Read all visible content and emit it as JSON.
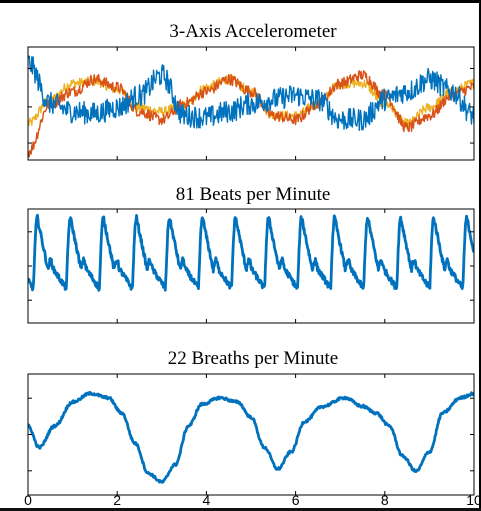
{
  "figure": {
    "colors": {
      "blue": "#0072BD",
      "orange": "#D95319",
      "yellow": "#EDB120",
      "axis": "#000000"
    }
  },
  "chart_data": [
    {
      "type": "line",
      "title": "3-Axis Accelerometer",
      "xlabel": "",
      "ylabel": "",
      "xlim": [
        0,
        10
      ],
      "ylim": [
        -1.4,
        1.4
      ],
      "grid": false,
      "legend": "none",
      "series": [
        {
          "color": "#EDB120",
          "x": [
            0,
            0.5,
            1,
            1.5,
            2,
            2.5,
            3,
            3.5,
            4,
            4.5,
            5,
            5.5,
            6,
            6.5,
            7,
            7.5,
            8,
            8.5,
            9,
            9.5,
            10
          ],
          "values": [
            -0.5,
            0.1,
            0.5,
            0.55,
            0.35,
            -0.1,
            -0.2,
            -0.05,
            0.4,
            0.6,
            0.3,
            -0.3,
            -0.3,
            0.0,
            0.5,
            0.5,
            0.0,
            -0.5,
            -0.1,
            0.3,
            0.5
          ],
          "noise": 0.12
        },
        {
          "color": "#D95319",
          "x": [
            0,
            0.5,
            1,
            1.5,
            2,
            2.5,
            3,
            3.5,
            4,
            4.5,
            5,
            5.5,
            6,
            6.5,
            7,
            7.5,
            8,
            8.5,
            9,
            9.5,
            10
          ],
          "values": [
            -1.2,
            0.0,
            0.3,
            0.6,
            0.4,
            -0.2,
            -0.4,
            0.0,
            0.3,
            0.6,
            0.3,
            -0.3,
            -0.4,
            0.0,
            0.5,
            0.7,
            0.2,
            -0.6,
            -0.3,
            0.2,
            0.4
          ],
          "noise": 0.14
        },
        {
          "color": "#0072BD",
          "x": [
            0,
            0.5,
            1,
            1.5,
            2,
            2.5,
            3,
            3.5,
            4,
            4.5,
            5,
            5.5,
            6,
            6.5,
            7,
            7.5,
            8,
            8.5,
            9,
            9.5,
            10
          ],
          "values": [
            1.0,
            0.0,
            -0.2,
            -0.25,
            -0.1,
            0.2,
            0.7,
            -0.3,
            -0.35,
            -0.2,
            0.0,
            0.1,
            0.2,
            0.1,
            -0.4,
            -0.4,
            0.1,
            0.3,
            0.6,
            0.3,
            -0.3
          ],
          "noise": 0.28
        }
      ]
    },
    {
      "type": "line",
      "title": "81 Beats per Minute",
      "xlabel": "",
      "ylabel": "",
      "xlim": [
        0,
        10
      ],
      "ylim": [
        -1.0,
        1.0
      ],
      "grid": false,
      "legend": "none",
      "series": [
        {
          "color": "#0072BD",
          "beats_per_minute": 81,
          "phase": 0.12,
          "peak": 0.85,
          "trough": -0.4,
          "noise": 0.05
        }
      ]
    },
    {
      "type": "line",
      "title": "22 Breaths per Minute",
      "xlabel": "",
      "ylabel": "",
      "xlim": [
        0,
        10
      ],
      "ylim": [
        -1.4,
        1.4
      ],
      "grid": false,
      "legend": "none",
      "xticks": [
        "0",
        "2",
        "4",
        "6",
        "8",
        "10"
      ],
      "series": [
        {
          "color": "#0072BD",
          "x": [
            0,
            0.25,
            0.6,
            1.0,
            1.4,
            1.8,
            2.1,
            2.4,
            2.7,
            3.0,
            3.3,
            3.6,
            3.9,
            4.3,
            4.7,
            5.0,
            5.3,
            5.6,
            5.9,
            6.2,
            6.6,
            7.1,
            7.5,
            7.8,
            8.1,
            8.4,
            8.7,
            9.0,
            9.3,
            9.7,
            10.0
          ],
          "values": [
            0.2,
            -0.3,
            0.2,
            0.75,
            0.95,
            0.85,
            0.5,
            -0.2,
            -0.9,
            -1.1,
            -0.7,
            0.2,
            0.7,
            0.85,
            0.75,
            0.4,
            -0.3,
            -0.8,
            -0.4,
            0.3,
            0.65,
            0.85,
            0.65,
            0.5,
            0.2,
            -0.5,
            -0.85,
            -0.4,
            0.5,
            0.85,
            0.95
          ],
          "noise": 0.03
        }
      ]
    }
  ]
}
